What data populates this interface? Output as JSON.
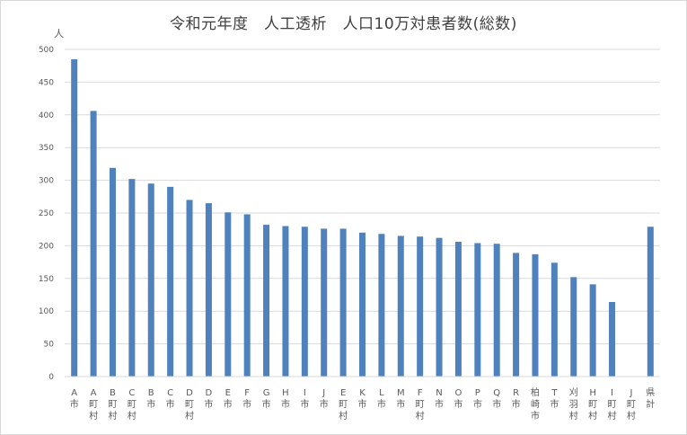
{
  "chart_data": {
    "type": "bar",
    "title": "令和元年度　人工透析　人口10万対患者数(総数)",
    "ylabel": "人",
    "ylim": [
      0,
      500
    ],
    "yticks": [
      0,
      50,
      100,
      150,
      200,
      250,
      300,
      350,
      400,
      450,
      500
    ],
    "grid": true,
    "bar_color": "#4f81bd",
    "categories": [
      "A市",
      "A町村",
      "B町村",
      "C町村",
      "B市",
      "C市",
      "D町村",
      "D市",
      "E市",
      "F市",
      "G市",
      "H市",
      "I市",
      "J市",
      "E町村",
      "K市",
      "L市",
      "M市",
      "F町村",
      "N市",
      "O市",
      "P市",
      "Q市",
      "R市",
      "柏崎市",
      "T市",
      "刈羽村",
      "H町村",
      "I町村",
      "J町村",
      "県計"
    ],
    "values": [
      485,
      406,
      319,
      302,
      295,
      290,
      270,
      265,
      251,
      248,
      232,
      230,
      229,
      226,
      226,
      220,
      218,
      215,
      214,
      212,
      206,
      204,
      203,
      189,
      187,
      174,
      152,
      141,
      114,
      0,
      229
    ]
  }
}
